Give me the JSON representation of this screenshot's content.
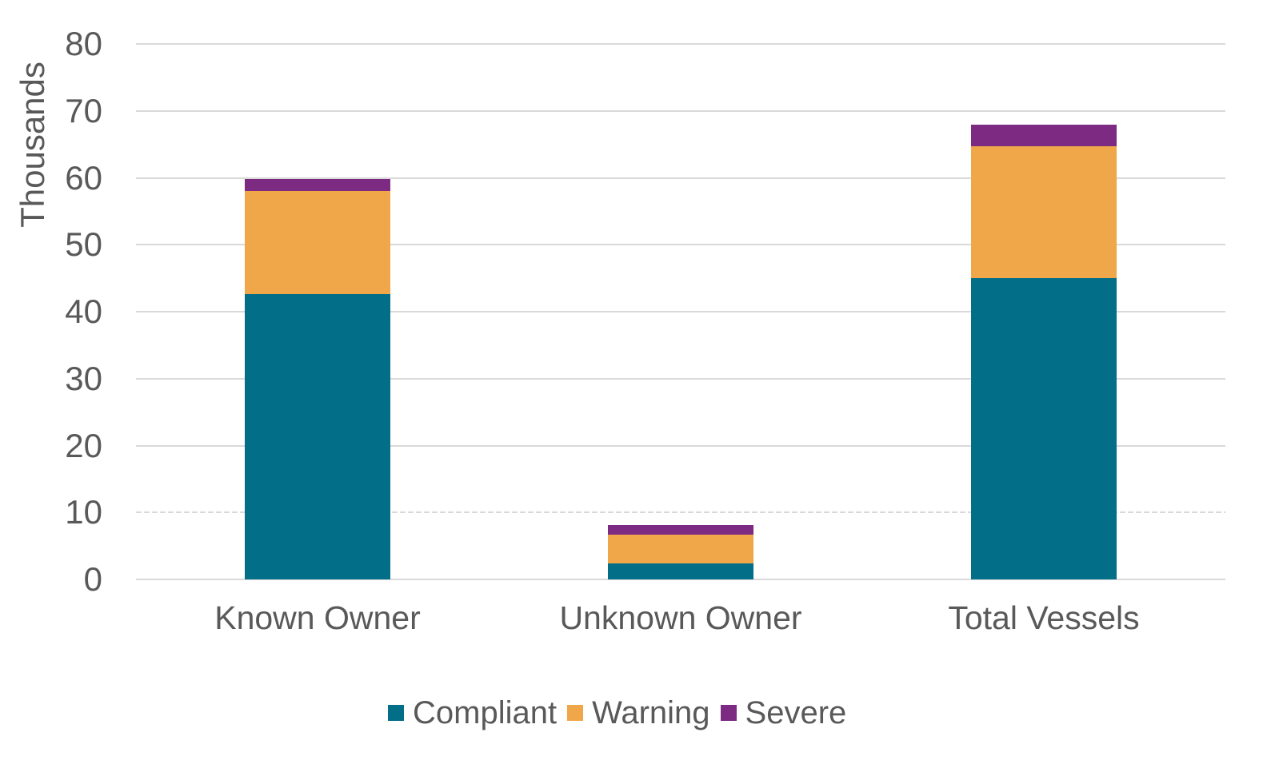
{
  "chart_data": {
    "type": "bar",
    "stacked": true,
    "title": "",
    "xlabel": "",
    "ylabel": "Thousands",
    "units": "thousands",
    "categories": [
      "Known Owner",
      "Unknown Owner",
      "Total Vessels"
    ],
    "series": [
      {
        "name": "Compliant",
        "color": "#036E87",
        "values": [
          42.6,
          2.4,
          45.0
        ]
      },
      {
        "name": "Warning",
        "color": "#F0A74A",
        "values": [
          15.4,
          4.3,
          19.7
        ]
      },
      {
        "name": "Severe",
        "color": "#7C2A82",
        "values": [
          1.8,
          1.4,
          3.2
        ]
      }
    ],
    "stack_totals": [
      59.8,
      8.1,
      67.9
    ],
    "ylim": [
      0,
      80
    ],
    "yticks": [
      0,
      10,
      20,
      30,
      40,
      50,
      60,
      70,
      80
    ],
    "grid": true,
    "dashed_gridlines": [
      10
    ],
    "legend_position": "bottom",
    "colors": {
      "axis_text": "#595959",
      "gridline": "#D9D9D9",
      "background": "#FFFFFF"
    }
  }
}
